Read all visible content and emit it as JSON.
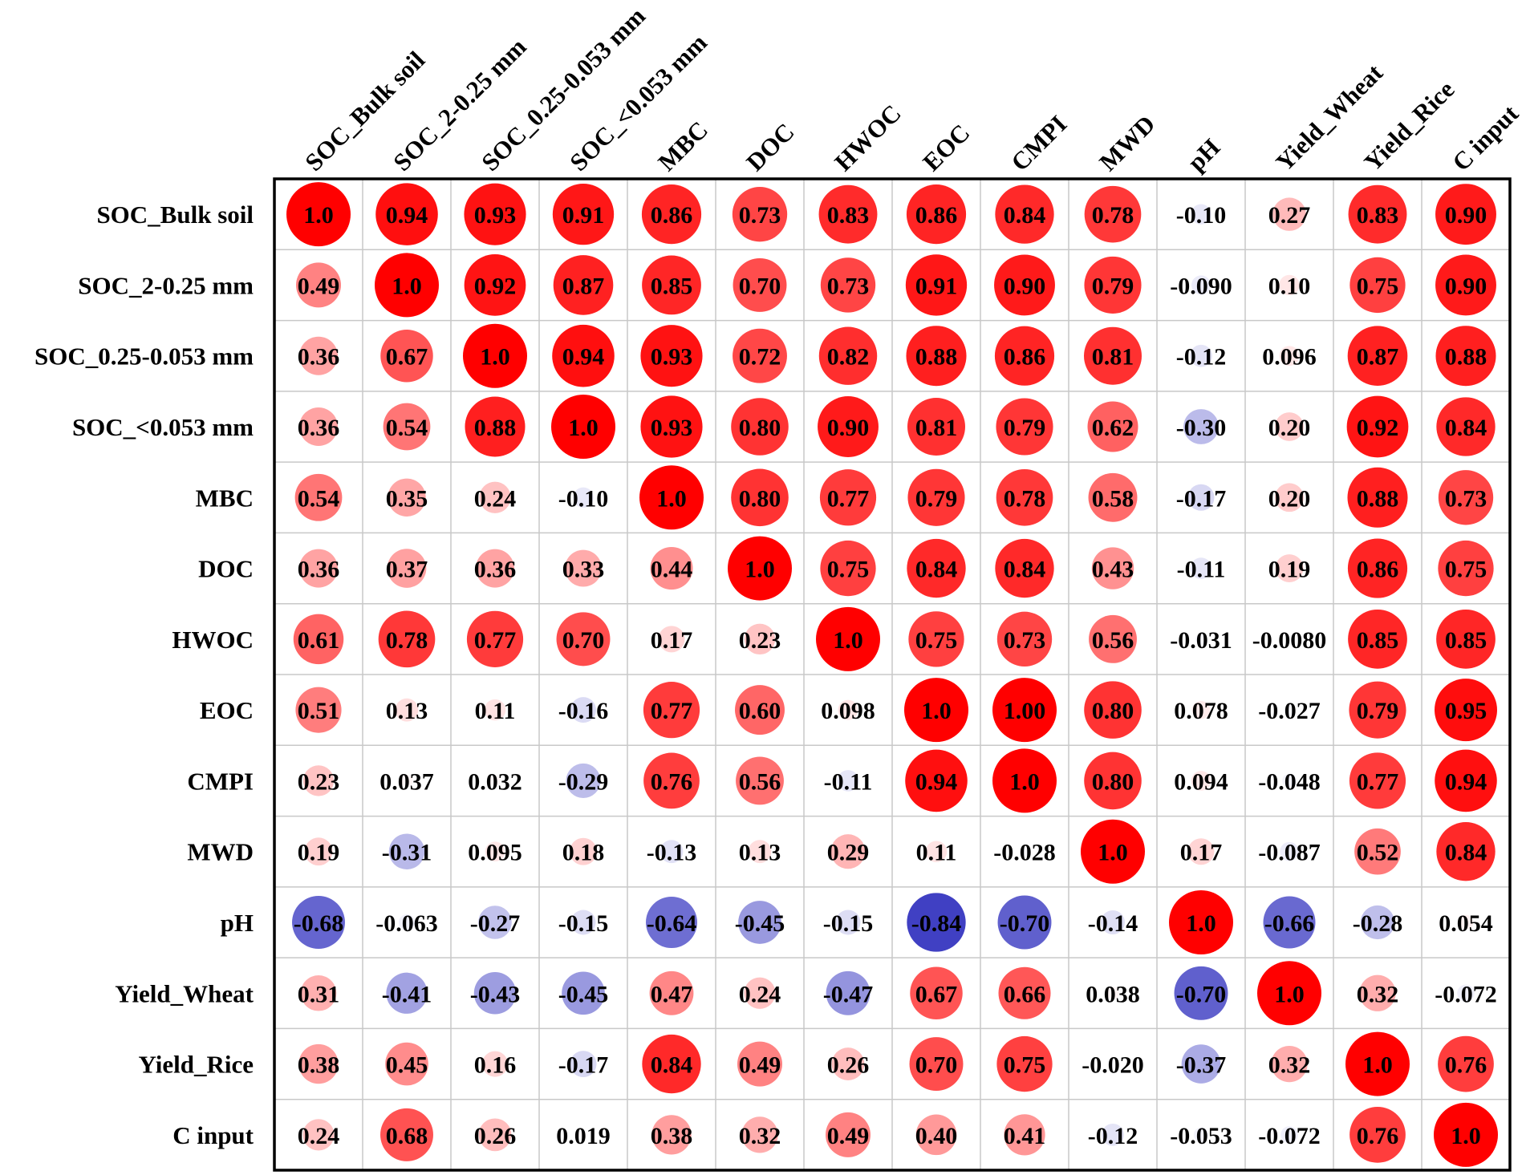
{
  "chart_data": {
    "type": "heatmap",
    "subtype": "correlation-matrix-circles",
    "variables": [
      "SOC_Bulk soil",
      "SOC_2-0.25 mm",
      "SOC_0.25-0.053 mm",
      "SOC_<0.053 mm",
      "MBC",
      "DOC",
      "HWOC",
      "EOC",
      "CMPI",
      "MWD",
      "pH",
      "Yield_Wheat",
      "Yield_Rice",
      "C input"
    ],
    "row_labels": [
      "SOC_Bulk soil",
      "SOC_2-0.25 mm",
      "SOC_0.25-0.053 mm",
      "SOC_<0.053 mm",
      "MBC",
      "DOC",
      "HWOC",
      "EOC",
      "CMPI",
      "MWD",
      "pH",
      "Yield_Wheat",
      "Yield_Rice",
      "C input"
    ],
    "col_labels": [
      "SOC_Bulk soil",
      "SOC_2-0.25 mm",
      "SOC_0.25-0.053 mm",
      "SOC_<0.053 mm",
      "MBC",
      "DOC",
      "HWOC",
      "EOC",
      "CMPI",
      "MWD",
      "pH",
      "Yield_Wheat",
      "Yield_Rice",
      "C input"
    ],
    "value_range": [
      -1,
      1
    ],
    "positive_color": "#ff0000",
    "negative_color": "#1c1cb8",
    "values": [
      [
        "1.0",
        "0.94",
        "0.93",
        "0.91",
        "0.86",
        "0.73",
        "0.83",
        "0.86",
        "0.84",
        "0.78",
        "-0.10",
        "0.27",
        "0.83",
        "0.90"
      ],
      [
        "0.49",
        "1.0",
        "0.92",
        "0.87",
        "0.85",
        "0.70",
        "0.73",
        "0.91",
        "0.90",
        "0.79",
        "-0.090",
        "0.10",
        "0.75",
        "0.90"
      ],
      [
        "0.36",
        "0.67",
        "1.0",
        "0.94",
        "0.93",
        "0.72",
        "0.82",
        "0.88",
        "0.86",
        "0.81",
        "-0.12",
        "0.096",
        "0.87",
        "0.88"
      ],
      [
        "0.36",
        "0.54",
        "0.88",
        "1.0",
        "0.93",
        "0.80",
        "0.90",
        "0.81",
        "0.79",
        "0.62",
        "-0.30",
        "0.20",
        "0.92",
        "0.84"
      ],
      [
        "0.54",
        "0.35",
        "0.24",
        "-0.10",
        "1.0",
        "0.80",
        "0.77",
        "0.79",
        "0.78",
        "0.58",
        "-0.17",
        "0.20",
        "0.88",
        "0.73"
      ],
      [
        "0.36",
        "0.37",
        "0.36",
        "0.33",
        "0.44",
        "1.0",
        "0.75",
        "0.84",
        "0.84",
        "0.43",
        "-0.11",
        "0.19",
        "0.86",
        "0.75"
      ],
      [
        "0.61",
        "0.78",
        "0.77",
        "0.70",
        "0.17",
        "0.23",
        "1.0",
        "0.75",
        "0.73",
        "0.56",
        "-0.031",
        "-0.0080",
        "0.85",
        "0.85"
      ],
      [
        "0.51",
        "0.13",
        "0.11",
        "-0.16",
        "0.77",
        "0.60",
        "0.098",
        "1.0",
        "1.00",
        "0.80",
        "0.078",
        "-0.027",
        "0.79",
        "0.95"
      ],
      [
        "0.23",
        "0.037",
        "0.032",
        "-0.29",
        "0.76",
        "0.56",
        "-0.11",
        "0.94",
        "1.0",
        "0.80",
        "0.094",
        "-0.048",
        "0.77",
        "0.94"
      ],
      [
        "0.19",
        "-0.31",
        "0.095",
        "0.18",
        "-0.13",
        "0.13",
        "0.29",
        "0.11",
        "-0.028",
        "1.0",
        "0.17",
        "-0.087",
        "0.52",
        "0.84"
      ],
      [
        "-0.68",
        "-0.063",
        "-0.27",
        "-0.15",
        "-0.64",
        "-0.45",
        "-0.15",
        "-0.84",
        "-0.70",
        "-0.14",
        "1.0",
        "-0.66",
        "-0.28",
        "0.054"
      ],
      [
        "0.31",
        "-0.41",
        "-0.43",
        "-0.45",
        "0.47",
        "0.24",
        "-0.47",
        "0.67",
        "0.66",
        "0.038",
        "-0.70",
        "1.0",
        "0.32",
        "-0.072"
      ],
      [
        "0.38",
        "0.45",
        "0.16",
        "-0.17",
        "0.84",
        "0.49",
        "0.26",
        "0.70",
        "0.75",
        "-0.020",
        "-0.37",
        "0.32",
        "1.0",
        "0.76"
      ],
      [
        "0.24",
        "0.68",
        "0.26",
        "0.019",
        "0.38",
        "0.32",
        "0.49",
        "0.40",
        "0.41",
        "-0.12",
        "-0.053",
        "-0.072",
        "0.76",
        "1.0"
      ]
    ]
  }
}
